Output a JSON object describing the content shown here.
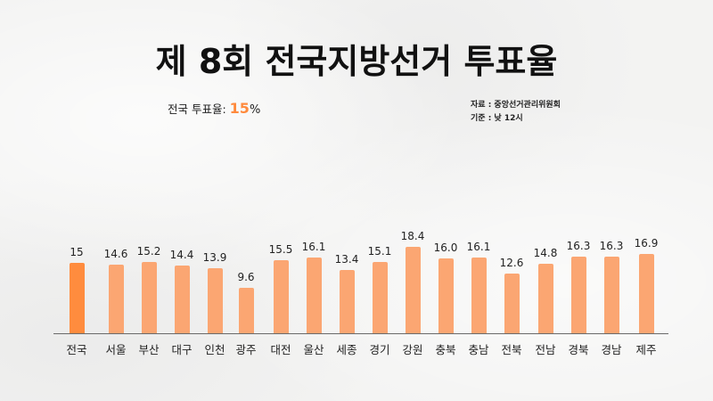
{
  "title": "제 8회 전국지방선거 투표율",
  "summary": {
    "label": "전국 투표율:",
    "value": "15",
    "unit": "%"
  },
  "source": {
    "line1": "자료 : 중앙선거관리위원회",
    "line2": "기준 : 낮 12시"
  },
  "colors": {
    "national": "#ff8c3e",
    "regional": "#fba672",
    "axis": "#6a6a6a"
  },
  "chart_data": {
    "type": "bar",
    "title": "제 8회 전국지방선거 투표율",
    "xlabel": "",
    "ylabel": "",
    "categories": [
      "전국",
      "서울",
      "부산",
      "대구",
      "인천",
      "광주",
      "대전",
      "울산",
      "세종",
      "경기",
      "강원",
      "충북",
      "충남",
      "전북",
      "전남",
      "경북",
      "경남",
      "제주"
    ],
    "values": [
      15,
      14.6,
      15.2,
      14.4,
      13.9,
      9.6,
      15.5,
      16.1,
      13.4,
      15.1,
      18.4,
      16.0,
      16.1,
      12.6,
      14.8,
      16.3,
      16.3,
      16.9
    ],
    "value_labels": [
      "15",
      "14.6",
      "15.2",
      "14.4",
      "13.9",
      "9.6",
      "15.5",
      "16.1",
      "13.4",
      "15.1",
      "18.4",
      "16.0",
      "16.1",
      "12.6",
      "14.8",
      "16.3",
      "16.3",
      "16.9"
    ],
    "highlight_index": 0,
    "grid": false,
    "legend": null,
    "ylim": [
      0,
      20
    ],
    "annotations": [
      "자료 : 중앙선거관리위원회",
      "기준 : 낮 12시",
      "전국 투표율: 15%"
    ]
  }
}
